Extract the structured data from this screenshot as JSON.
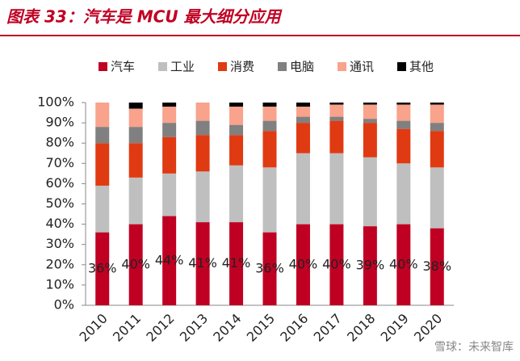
{
  "chart_data": {
    "type": "stacked_bar",
    "title": "图表 33：汽车是 MCU 最大细分应用",
    "watermark": "雪球：未来智库",
    "categories": [
      "2010",
      "2011",
      "2012",
      "2013",
      "2014",
      "2015",
      "2016",
      "2017",
      "2018",
      "2019",
      "2020"
    ],
    "series": [
      {
        "name": "汽车",
        "color": "#c00023",
        "values": [
          36,
          40,
          44,
          41,
          41,
          36,
          40,
          40,
          39,
          40,
          38
        ],
        "value_labels": [
          "36%",
          "40%",
          "44%",
          "41%",
          "41%",
          "36%",
          "40%",
          "40%",
          "39%",
          "40%",
          "38%"
        ]
      },
      {
        "name": "工业",
        "color": "#bfbfbf",
        "values": [
          23,
          23,
          21,
          25,
          28,
          32,
          35,
          35,
          34,
          30,
          30
        ]
      },
      {
        "name": "消费",
        "color": "#e03a12",
        "values": [
          21,
          17,
          18,
          18,
          15,
          18,
          15,
          16,
          17,
          17,
          18
        ]
      },
      {
        "name": "电脑",
        "color": "#808080",
        "values": [
          8,
          8,
          7,
          7,
          5,
          5,
          3,
          2,
          2,
          4,
          4
        ]
      },
      {
        "name": "通讯",
        "color": "#f9a28c",
        "values": [
          12,
          9,
          8,
          9,
          9,
          7,
          5,
          6,
          7,
          8,
          9
        ]
      },
      {
        "name": "其他",
        "color": "#000000",
        "values": [
          0,
          3,
          2,
          0,
          2,
          2,
          2,
          1,
          1,
          1,
          1
        ]
      }
    ],
    "ylim": [
      0,
      100
    ],
    "yticks": [
      {
        "value": 0,
        "label": "0%"
      },
      {
        "value": 10,
        "label": "10%"
      },
      {
        "value": 20,
        "label": "20%"
      },
      {
        "value": 30,
        "label": "30%"
      },
      {
        "value": 40,
        "label": "40%"
      },
      {
        "value": 50,
        "label": "50%"
      },
      {
        "value": 60,
        "label": "60%"
      },
      {
        "value": 70,
        "label": "70%"
      },
      {
        "value": 80,
        "label": "80%"
      },
      {
        "value": 90,
        "label": "90%"
      },
      {
        "value": 100,
        "label": "100%"
      }
    ]
  }
}
